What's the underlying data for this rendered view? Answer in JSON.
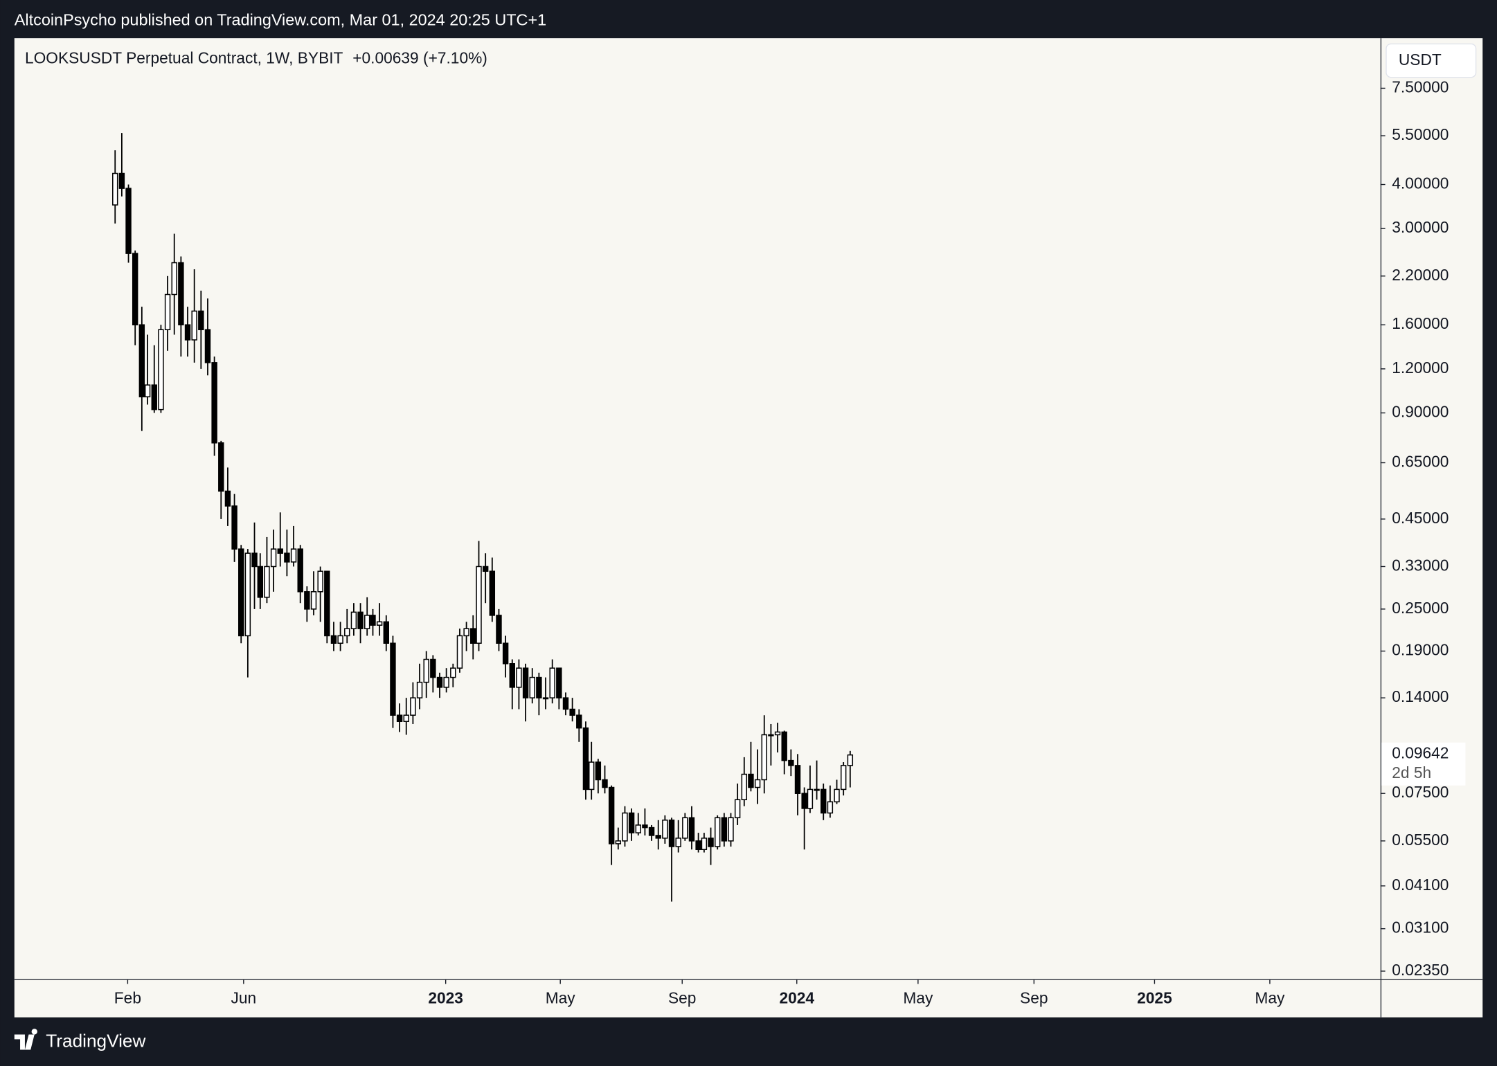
{
  "header": "AltcoinPsycho published on TradingView.com, Mar 01, 2024 20:25 UTC+1",
  "footer": "TradingView",
  "chart_data": {
    "type": "candlestick",
    "title": "LOOKSUSDT Perpetual Contract, 1W, BYBIT",
    "change": "+0.00639 (+7.10%)",
    "currency": "USDT",
    "log_scale": true,
    "grid": false,
    "up_color": "#ffffff",
    "down_color": "#000000",
    "border_color": "#000000",
    "last_price_label": "0.09642",
    "countdown": "2d 5h",
    "xlim": [
      -15.1,
      191.1
    ],
    "xticks": [
      {
        "value": 2,
        "label": "Feb"
      },
      {
        "value": 19.5,
        "label": "Jun"
      },
      {
        "value": 50,
        "label": "2023"
      },
      {
        "value": 67.3,
        "label": "May"
      },
      {
        "value": 85.7,
        "label": "Sep"
      },
      {
        "value": 103,
        "label": "2024"
      },
      {
        "value": 121.3,
        "label": "May"
      },
      {
        "value": 138.8,
        "label": "Sep"
      },
      {
        "value": 157,
        "label": "2025"
      },
      {
        "value": 174.4,
        "label": "May"
      }
    ],
    "ylim": [
      0.0223,
      10.4
    ],
    "yticks": [
      {
        "value": 7.5,
        "label": "7.50000"
      },
      {
        "value": 5.5,
        "label": "5.50000"
      },
      {
        "value": 4,
        "label": "4.00000"
      },
      {
        "value": 3,
        "label": "3.00000"
      },
      {
        "value": 2.2,
        "label": "2.20000"
      },
      {
        "value": 1.6,
        "label": "1.60000"
      },
      {
        "value": 1.2,
        "label": "1.20000"
      },
      {
        "value": 0.9,
        "label": "0.90000"
      },
      {
        "value": 0.65,
        "label": "0.65000"
      },
      {
        "value": 0.45,
        "label": "0.45000"
      },
      {
        "value": 0.33,
        "label": "0.33000"
      },
      {
        "value": 0.25,
        "label": "0.25000"
      },
      {
        "value": 0.19,
        "label": "0.19000"
      },
      {
        "value": 0.14,
        "label": "0.14000"
      },
      {
        "value": 0.075,
        "label": "0.07500"
      },
      {
        "value": 0.055,
        "label": "0.05500"
      },
      {
        "value": 0.041,
        "label": "0.04100"
      },
      {
        "value": 0.031,
        "label": "0.03100"
      },
      {
        "value": 0.0235,
        "label": "0.02350"
      }
    ],
    "open": [
      3.5,
      4.3,
      3.9,
      2.55,
      1.6,
      1.0,
      1.08,
      0.92,
      1.55,
      1.95,
      2.4,
      1.6,
      1.45,
      1.75,
      1.55,
      1.25,
      0.74,
      0.54,
      0.49,
      0.37,
      0.21,
      0.36,
      0.33,
      0.27,
      0.33,
      0.37,
      0.36,
      0.34,
      0.37,
      0.28,
      0.25,
      0.28,
      0.32,
      0.21,
      0.2,
      0.21,
      0.22,
      0.245,
      0.22,
      0.24,
      0.225,
      0.23,
      0.2,
      0.125,
      0.12,
      0.125,
      0.14,
      0.155,
      0.18,
      0.16,
      0.15,
      0.16,
      0.17,
      0.21,
      0.22,
      0.2,
      0.33,
      0.32,
      0.24,
      0.2,
      0.175,
      0.15,
      0.17,
      0.14,
      0.16,
      0.14,
      0.14,
      0.17,
      0.14,
      0.13,
      0.125,
      0.115,
      0.077,
      0.092,
      0.082,
      0.078,
      0.054,
      0.055,
      0.066,
      0.058,
      0.061,
      0.06,
      0.057,
      0.056,
      0.063,
      0.053,
      0.056,
      0.064,
      0.055,
      0.052,
      0.056,
      0.053,
      0.064,
      0.055,
      0.064,
      0.072,
      0.085,
      0.078,
      0.082,
      0.11,
      0.11,
      0.112,
      0.093,
      0.09,
      0.075,
      0.068,
      0.077,
      0.077,
      0.066,
      0.071,
      0.077,
      0.09
    ],
    "high": [
      5.0,
      5.6,
      4.0,
      2.6,
      1.8,
      1.5,
      1.4,
      1.6,
      2.2,
      2.9,
      2.5,
      1.8,
      2.3,
      2.0,
      1.9,
      1.3,
      0.75,
      0.63,
      0.53,
      0.38,
      0.37,
      0.44,
      0.36,
      0.4,
      0.42,
      0.47,
      0.42,
      0.43,
      0.38,
      0.29,
      0.32,
      0.33,
      0.32,
      0.23,
      0.23,
      0.25,
      0.26,
      0.26,
      0.27,
      0.25,
      0.26,
      0.24,
      0.21,
      0.135,
      0.14,
      0.155,
      0.175,
      0.19,
      0.185,
      0.165,
      0.17,
      0.175,
      0.22,
      0.23,
      0.24,
      0.39,
      0.36,
      0.35,
      0.25,
      0.21,
      0.18,
      0.18,
      0.175,
      0.17,
      0.165,
      0.16,
      0.18,
      0.17,
      0.145,
      0.14,
      0.13,
      0.12,
      0.105,
      0.094,
      0.09,
      0.079,
      0.06,
      0.069,
      0.068,
      0.066,
      0.068,
      0.061,
      0.063,
      0.065,
      0.064,
      0.063,
      0.066,
      0.069,
      0.058,
      0.058,
      0.06,
      0.065,
      0.066,
      0.066,
      0.08,
      0.095,
      0.105,
      0.1,
      0.125,
      0.118,
      0.119,
      0.113,
      0.1,
      0.097,
      0.078,
      0.09,
      0.093,
      0.08,
      0.079,
      0.082,
      0.092,
      0.099
    ],
    "low": [
      3.1,
      3.7,
      2.4,
      1.4,
      0.8,
      0.95,
      0.9,
      0.9,
      1.35,
      1.5,
      1.3,
      1.3,
      1.25,
      1.2,
      1.15,
      0.68,
      0.45,
      0.43,
      0.34,
      0.2,
      0.16,
      0.25,
      0.25,
      0.26,
      0.28,
      0.33,
      0.31,
      0.33,
      0.26,
      0.23,
      0.24,
      0.23,
      0.2,
      0.19,
      0.19,
      0.2,
      0.21,
      0.2,
      0.21,
      0.21,
      0.21,
      0.19,
      0.115,
      0.112,
      0.11,
      0.118,
      0.13,
      0.14,
      0.145,
      0.14,
      0.145,
      0.15,
      0.165,
      0.19,
      0.18,
      0.19,
      0.26,
      0.23,
      0.19,
      0.16,
      0.13,
      0.13,
      0.12,
      0.135,
      0.125,
      0.13,
      0.135,
      0.13,
      0.125,
      0.12,
      0.105,
      0.072,
      0.072,
      0.075,
      0.075,
      0.047,
      0.052,
      0.053,
      0.055,
      0.057,
      0.057,
      0.055,
      0.052,
      0.054,
      0.037,
      0.051,
      0.055,
      0.052,
      0.051,
      0.051,
      0.047,
      0.052,
      0.053,
      0.053,
      0.061,
      0.069,
      0.076,
      0.07,
      0.075,
      0.09,
      0.098,
      0.085,
      0.084,
      0.065,
      0.052,
      0.066,
      0.072,
      0.063,
      0.064,
      0.07,
      0.074,
      0.078
    ],
    "close": [
      4.3,
      3.9,
      2.55,
      1.6,
      1.0,
      1.08,
      0.92,
      1.55,
      1.95,
      2.4,
      1.6,
      1.45,
      1.75,
      1.55,
      1.25,
      0.74,
      0.54,
      0.49,
      0.37,
      0.21,
      0.36,
      0.33,
      0.27,
      0.33,
      0.37,
      0.36,
      0.34,
      0.37,
      0.28,
      0.25,
      0.28,
      0.32,
      0.21,
      0.2,
      0.21,
      0.22,
      0.245,
      0.22,
      0.24,
      0.225,
      0.23,
      0.2,
      0.125,
      0.12,
      0.125,
      0.14,
      0.155,
      0.18,
      0.16,
      0.15,
      0.16,
      0.17,
      0.21,
      0.22,
      0.2,
      0.33,
      0.32,
      0.24,
      0.2,
      0.175,
      0.15,
      0.17,
      0.14,
      0.16,
      0.14,
      0.14,
      0.17,
      0.14,
      0.13,
      0.125,
      0.115,
      0.077,
      0.092,
      0.082,
      0.078,
      0.054,
      0.055,
      0.066,
      0.058,
      0.061,
      0.06,
      0.057,
      0.056,
      0.063,
      0.053,
      0.056,
      0.064,
      0.055,
      0.052,
      0.056,
      0.053,
      0.064,
      0.055,
      0.064,
      0.072,
      0.085,
      0.078,
      0.082,
      0.11,
      0.11,
      0.112,
      0.093,
      0.09,
      0.075,
      0.068,
      0.077,
      0.077,
      0.066,
      0.071,
      0.077,
      0.09,
      0.09642
    ]
  }
}
